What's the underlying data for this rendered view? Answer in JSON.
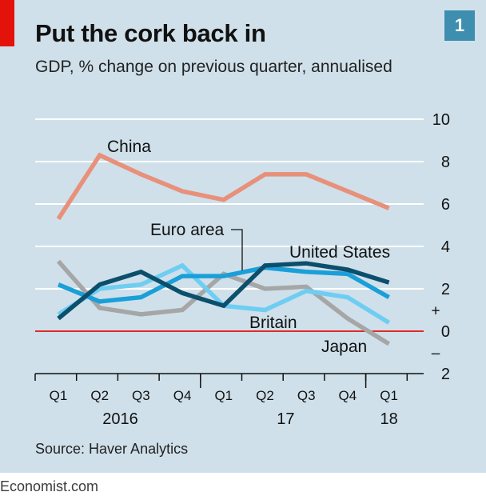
{
  "header": {
    "title": "Put the cork back in",
    "subtitle": "GDP, % change on previous quarter, annualised",
    "badge": "1"
  },
  "source": "Source: Haver Analytics",
  "footer": "Economist.com",
  "colors": {
    "background": "#cfe0ea",
    "china": "#e8907a",
    "united_states": "#0b4f6c",
    "euro_area": "#1a9fd8",
    "britain": "#6fcdf2",
    "japan": "#a6a6a6",
    "zero_line": "#e3120b",
    "accent": "#e3120b"
  },
  "chart_data": {
    "type": "line",
    "categories": [
      "Q1",
      "Q2",
      "Q3",
      "Q4",
      "Q1",
      "Q2",
      "Q3",
      "Q4",
      "Q1"
    ],
    "year_labels": [
      {
        "label": "2016",
        "at_index": 1.5
      },
      {
        "label": "17",
        "at_index": 5.5
      },
      {
        "label": "18",
        "at_index": 8
      }
    ],
    "y_ticks": [
      {
        "value": 10,
        "label": "10"
      },
      {
        "value": 8,
        "label": "8"
      },
      {
        "value": 6,
        "label": "6"
      },
      {
        "value": 4,
        "label": "4"
      },
      {
        "value": 2,
        "label": "2"
      },
      {
        "value": 0,
        "label": "0"
      },
      {
        "value": -2,
        "label": "2"
      }
    ],
    "sign_labels": {
      "plus": "+",
      "minus": "–"
    },
    "ylim": [
      -2,
      10
    ],
    "grid": true,
    "series": [
      {
        "name": "China",
        "key": "china",
        "values": [
          5.3,
          8.3,
          7.4,
          6.6,
          6.2,
          7.4,
          7.4,
          6.6,
          5.8
        ]
      },
      {
        "name": "Japan",
        "key": "japan",
        "values": [
          3.3,
          1.1,
          0.8,
          1.0,
          2.7,
          2.0,
          2.1,
          0.6,
          -0.6
        ]
      },
      {
        "name": "Britain",
        "key": "britain",
        "values": [
          0.8,
          2.0,
          2.2,
          3.1,
          1.2,
          1.0,
          1.9,
          1.6,
          0.4
        ]
      },
      {
        "name": "Euro area",
        "key": "euro_area",
        "values": [
          2.2,
          1.4,
          1.6,
          2.6,
          2.6,
          3.0,
          2.8,
          2.7,
          1.6
        ]
      },
      {
        "name": "United States",
        "key": "united_states",
        "values": [
          0.6,
          2.2,
          2.8,
          1.8,
          1.2,
          3.1,
          3.2,
          2.9,
          2.3
        ]
      }
    ],
    "series_labels": [
      {
        "key": "china",
        "text": "China"
      },
      {
        "key": "euro_area",
        "text": "Euro area"
      },
      {
        "key": "united_states",
        "text": "United States"
      },
      {
        "key": "britain",
        "text": "Britain"
      },
      {
        "key": "japan",
        "text": "Japan"
      }
    ]
  }
}
